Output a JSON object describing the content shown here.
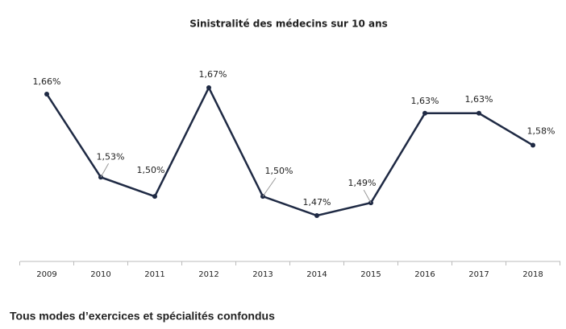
{
  "chart_data": {
    "type": "line",
    "title": "Sinistralité des médecins sur 10 ans",
    "categories": [
      "2009",
      "2010",
      "2011",
      "2012",
      "2013",
      "2014",
      "2015",
      "2016",
      "2017",
      "2018"
    ],
    "series": [
      {
        "color": "#1f2a44",
        "values": [
          1.66,
          1.53,
          1.5,
          1.67,
          1.5,
          1.47,
          1.49,
          1.63,
          1.63,
          1.58
        ],
        "value_labels": [
          "1,66%",
          "1,53%",
          "1,50%",
          "1,67%",
          "1,50%",
          "1,47%",
          "1,49%",
          "1,63%",
          "1,63%",
          "1,58%"
        ]
      }
    ]
  },
  "caption": "Tous modes d’exercices et spécialités confondus"
}
